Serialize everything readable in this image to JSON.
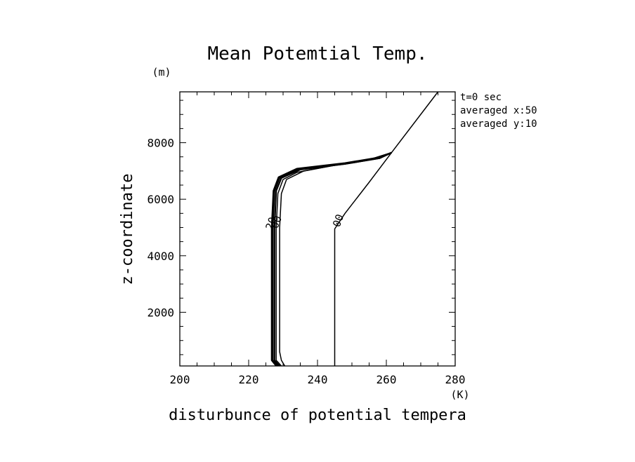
{
  "chart_data": {
    "type": "line",
    "title": "Mean Potemtial Temp.",
    "xlabel": "disturbunce of potential tempera",
    "ylabel": "z-coordinate",
    "xunit": "(K)",
    "yunit": "(m)",
    "xlim": [
      200,
      280
    ],
    "ylim": [
      100,
      9800
    ],
    "xticks": [
      200,
      220,
      240,
      260,
      280
    ],
    "yticks": [
      2000,
      4000,
      6000,
      8000
    ],
    "annotations": [
      "t=0 sec",
      "averaged  x:50",
      "averaged  y:10"
    ],
    "contour_labels": [
      {
        "text": "00",
        "x": 247,
        "y": 5200
      },
      {
        "text": "00",
        "x": 229,
        "y": 5150
      },
      {
        "text": "20",
        "x": 227.5,
        "y": 5100
      }
    ],
    "series": [
      {
        "values": [
          [
            245,
            100
          ],
          [
            245,
            4950
          ],
          [
            248,
            5500
          ],
          [
            255,
            6600
          ],
          [
            261.5,
            7650
          ],
          [
            275,
            9800
          ]
        ]
      },
      {
        "values": [
          [
            230.5,
            100
          ],
          [
            229.5,
            300
          ],
          [
            229,
            600
          ],
          [
            229,
            5000
          ],
          [
            229.5,
            6200
          ],
          [
            231,
            6700
          ],
          [
            236,
            7000
          ],
          [
            245,
            7200
          ],
          [
            255,
            7400
          ],
          [
            261.5,
            7650
          ]
        ]
      },
      {
        "values": [
          [
            229.5,
            100
          ],
          [
            228,
            300
          ],
          [
            228,
            5000
          ],
          [
            228.5,
            6200
          ],
          [
            230,
            6700
          ],
          [
            234,
            6950
          ],
          [
            245,
            7200
          ],
          [
            255,
            7400
          ],
          [
            261.5,
            7650
          ]
        ]
      },
      {
        "values": [
          [
            229,
            100
          ],
          [
            227.5,
            300
          ],
          [
            227.5,
            5000
          ],
          [
            228,
            6300
          ],
          [
            229.5,
            6750
          ],
          [
            235,
            7050
          ],
          [
            248,
            7250
          ],
          [
            258,
            7450
          ],
          [
            261.5,
            7650
          ]
        ]
      },
      {
        "values": [
          [
            228.5,
            100
          ],
          [
            227,
            300
          ],
          [
            227,
            5000
          ],
          [
            227.5,
            6300
          ],
          [
            229,
            6750
          ],
          [
            234,
            7050
          ],
          [
            248,
            7250
          ],
          [
            258,
            7450
          ],
          [
            261.5,
            7650
          ]
        ]
      },
      {
        "values": [
          [
            228,
            100
          ],
          [
            226.7,
            300
          ],
          [
            226.7,
            5000
          ],
          [
            227.2,
            6300
          ],
          [
            228.7,
            6780
          ],
          [
            234,
            7080
          ],
          [
            248,
            7280
          ],
          [
            258,
            7480
          ],
          [
            261.5,
            7650
          ]
        ]
      }
    ]
  }
}
